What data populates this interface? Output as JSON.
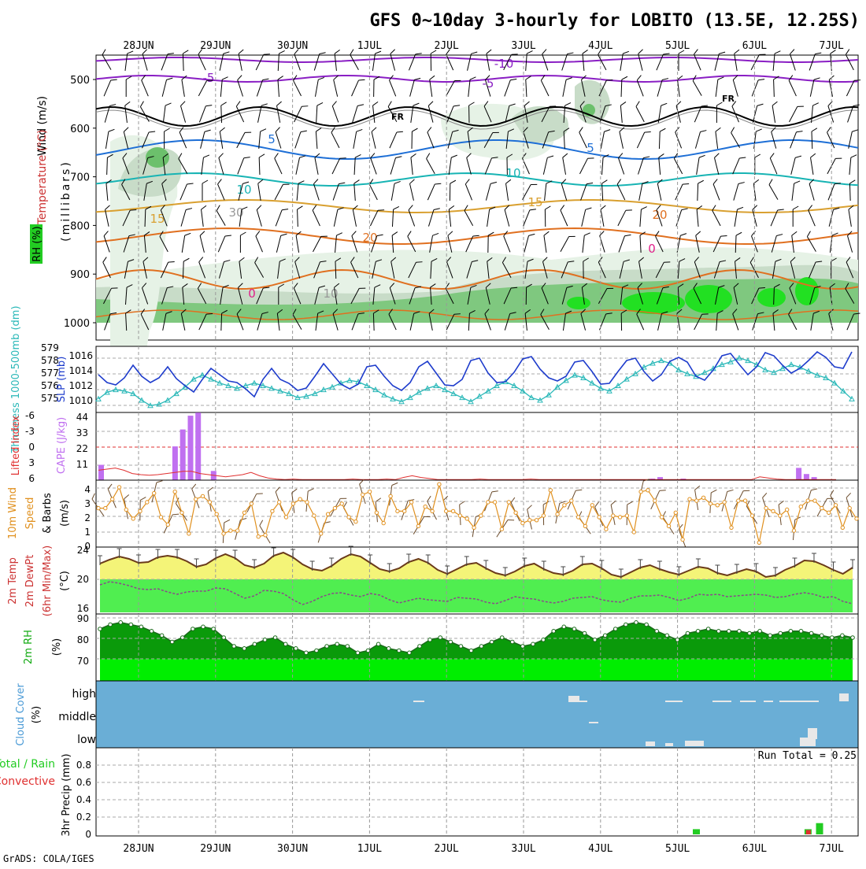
{
  "title": "GFS 0~10day 3-hourly for LOBITO (13.5E, 12.25S)",
  "footer": "GrADS: COLA/IGES",
  "days": [
    "28JUN",
    "29JUN",
    "30JUN",
    "1JUL",
    "2JUL",
    "3JUL",
    "4JUL",
    "5JUL",
    "6JUL",
    "7JUL"
  ],
  "colors": {
    "temp_neg10": "#8a1fc4",
    "temp_neg5": "#8a1fc4",
    "freezing": "#000000",
    "temp_5": "#1e6fd6",
    "temp_10": "#18b4b4",
    "temp_15": "#d9a030",
    "temp_20": "#e07020",
    "rh_light": "#e6f2e6",
    "rh_mid": "#c8dcc8",
    "rh_dark": "#7fc87f",
    "rh_bright": "#22e022",
    "slp": "#1e3ccc",
    "thickness": "#2ab8b8",
    "cape": "#c070f0",
    "lifted": "#e03030",
    "wind10": "#e0901e",
    "temp_fill": "#f4f478",
    "dew_fill": "#50ee50",
    "temp_line": "#6a3a1a",
    "rh_fill_dark": "#0a9a0a",
    "rh_fill_bright": "#00ee00",
    "cloud": "#6aaed6",
    "precip_total": "#22cc22",
    "precip_conv": "#e03030"
  },
  "panels": {
    "upper": {
      "ylabels": [
        "Wind (m/s)",
        "Temperature (°C)",
        "RH (%)",
        "(millibars)"
      ],
      "ticks": [
        "500",
        "600",
        "700",
        "800",
        "900",
        "1000"
      ],
      "contour_labels": [
        "-10",
        "-5",
        "-5",
        "FR",
        "FR",
        "5",
        "5",
        "10",
        "10",
        "15",
        "15",
        "20",
        "20",
        "0",
        "0",
        "30",
        "10"
      ]
    },
    "pressure": {
      "ylabel_left": "Thickness 1000-500mb (dm)",
      "ylabel_right": "SLP (mb)",
      "ticks_left": [
        "579",
        "578",
        "577",
        "576",
        "575"
      ],
      "ticks_right": [
        "1016",
        "1014",
        "1012",
        "1010"
      ]
    },
    "cape": {
      "ylabel_left": "Lifted Index",
      "ylabel_right": "CAPE (J/kg)",
      "ticks_left": [
        "-6",
        "-3",
        "0",
        "3",
        "6"
      ],
      "ticks_right": [
        "44",
        "33",
        "22",
        "11"
      ]
    },
    "wind10": {
      "ylabel": [
        "10m Wind",
        "Speed",
        "& Barbs",
        "(m/s)"
      ],
      "ticks": [
        "4",
        "3",
        "2",
        "1",
        "0"
      ]
    },
    "temp2m": {
      "ylabel": [
        "2m Temp",
        "2m DewPt",
        "(6hr Min/Max)",
        "(°C)"
      ],
      "ticks": [
        "24",
        "20",
        "16"
      ]
    },
    "rh2m": {
      "ylabel": [
        "2m RH",
        "(%)"
      ],
      "ticks": [
        "90",
        "80",
        "70"
      ]
    },
    "cloud": {
      "ylabel": [
        "Cloud Cover",
        "(%)"
      ],
      "ticks": [
        "high",
        "middle",
        "low"
      ]
    },
    "precip": {
      "ylabel": [
        "Total / Rain",
        "Convective",
        "3hr Precip (mm)"
      ],
      "ticks": [
        "0.8",
        "0.6",
        "0.4",
        "0.2",
        "0"
      ],
      "run_total": "Run Total = 0.25"
    }
  },
  "chart_data": [
    {
      "type": "line",
      "title": "SLP (mb)",
      "x_unit": "day index (0 = 28JUN 00Z, 3-hourly)",
      "ylim": [
        1009.5,
        1016.5
      ],
      "series": [
        {
          "name": "SLP (mb)",
          "values": [
            1013.6,
            1012.6,
            1012.3,
            1013.2,
            1014.8,
            1013.4,
            1012.6,
            1013.2,
            1014.6,
            1013.1,
            1012.2,
            1011.4,
            1013.0,
            1014.4,
            1013.6,
            1012.8,
            1012.6,
            1011.8,
            1010.8,
            1013.0,
            1014.4,
            1013.0,
            1012.5,
            1011.6,
            1011.9,
            1013.4,
            1015.0,
            1013.7,
            1012.4,
            1011.8,
            1012.4,
            1014.6,
            1014.8,
            1013.4,
            1012.2,
            1011.6,
            1012.6,
            1014.6,
            1015.3,
            1013.8,
            1012.3,
            1012.2,
            1013.0,
            1015.4,
            1015.7,
            1013.8,
            1012.6,
            1012.7,
            1013.9,
            1015.6,
            1015.9,
            1014.3,
            1013.2,
            1012.8,
            1013.4,
            1015.2,
            1015.4,
            1014.0,
            1012.4,
            1012.5,
            1014.0,
            1015.4,
            1015.7,
            1014.0,
            1012.8,
            1013.6,
            1015.3,
            1015.8,
            1015.2,
            1013.4,
            1012.9,
            1014.2,
            1016.0,
            1016.3,
            1014.9,
            1013.6,
            1014.6,
            1016.4,
            1016.0,
            1014.8,
            1013.8,
            1014.4,
            1015.4,
            1016.5,
            1015.8,
            1014.6,
            1014.4,
            1016.5
          ]
        }
      ]
    },
    {
      "type": "line",
      "title": "Thickness 1000-500mb (dm)",
      "ylim": [
        574.5,
        579.2
      ],
      "series": [
        {
          "name": "Thickness (dm)",
          "values": [
            575.2,
            575.7,
            575.9,
            575.8,
            575.6,
            575.1,
            574.7,
            574.8,
            575.1,
            575.6,
            576.1,
            576.7,
            577.0,
            576.7,
            576.4,
            576.2,
            576.0,
            576.2,
            576.4,
            576.2,
            576.0,
            575.8,
            575.6,
            575.3,
            575.4,
            575.6,
            575.9,
            576.1,
            576.4,
            576.6,
            576.5,
            576.2,
            575.9,
            575.5,
            575.2,
            575.0,
            575.3,
            575.7,
            576.0,
            576.2,
            575.9,
            575.6,
            575.3,
            575.0,
            575.4,
            575.8,
            576.2,
            576.5,
            576.2,
            575.8,
            575.3,
            575.1,
            575.5,
            576.1,
            576.6,
            577.0,
            576.8,
            576.4,
            576.0,
            575.8,
            576.2,
            576.7,
            577.1,
            577.6,
            577.9,
            578.1,
            577.9,
            577.4,
            577.1,
            576.9,
            577.2,
            577.5,
            577.8,
            578.0,
            578.3,
            578.1,
            577.8,
            577.4,
            577.2,
            577.5,
            577.8,
            577.6,
            577.3,
            577.0,
            576.8,
            576.4,
            575.8,
            575.2
          ]
        }
      ]
    },
    {
      "type": "bar",
      "title": "CAPE (J/kg)",
      "bars": [
        [
          0.0,
          10
        ],
        [
          0.5,
          22
        ],
        [
          0.6,
          33
        ],
        [
          0.7,
          42
        ],
        [
          0.8,
          44
        ],
        [
          1.0,
          6
        ],
        [
          6.7,
          1
        ],
        [
          6.8,
          2
        ],
        [
          7.1,
          1
        ],
        [
          8.6,
          8
        ],
        [
          8.7,
          4
        ],
        [
          8.8,
          2
        ]
      ],
      "ylim": [
        0,
        44
      ]
    },
    {
      "type": "line",
      "title": "Lifted Index",
      "ylim": [
        -6,
        6
      ],
      "series": [
        {
          "name": "Lifted Index",
          "values": [
            4.2,
            4.0,
            3.8,
            4.2,
            4.8,
            5.0,
            5.1,
            5.0,
            4.8,
            4.6,
            4.4,
            4.4,
            4.8,
            5.0,
            5.2,
            5.4,
            5.2,
            5.0,
            4.6,
            5.2,
            5.6,
            5.8,
            5.9,
            5.8,
            5.9,
            5.9,
            5.9,
            5.9,
            5.9,
            5.9,
            5.8,
            5.9,
            5.9,
            5.9,
            5.8,
            5.9,
            5.5,
            5.2,
            5.5,
            5.7,
            5.9,
            5.9,
            5.9,
            5.9,
            5.9,
            5.8,
            5.9,
            5.9,
            5.9,
            5.9,
            5.9,
            5.8,
            5.9,
            5.9,
            5.9,
            5.9,
            5.9,
            5.9,
            5.9,
            5.9,
            5.9,
            5.9,
            5.9,
            5.9,
            5.9,
            5.9,
            5.9,
            5.9,
            5.9,
            5.9,
            5.9,
            5.9,
            5.9,
            5.9,
            5.9,
            5.9,
            5.9,
            5.9,
            5.4,
            5.6,
            5.8,
            5.9,
            5.9,
            5.9,
            5.9,
            5.9,
            5.9,
            5.9
          ]
        }
      ]
    },
    {
      "type": "line",
      "title": "10m Wind Speed (m/s)",
      "ylim": [
        0,
        4.5
      ],
      "series": [
        {
          "name": "10m Wind Speed",
          "values": [
            2.6,
            2.6,
            3.2,
            4.0,
            2.5,
            1.9,
            2.4,
            3.0,
            3.6,
            2.0,
            1.5,
            3.7,
            2.3,
            0.9,
            3.2,
            3.4,
            3.0,
            2.2,
            0.9,
            1.1,
            1.1,
            2.3,
            2.9,
            0.7,
            0.8,
            2.4,
            3.0,
            2.0,
            2.9,
            3.2,
            3.0,
            2.1,
            0.9,
            2.2,
            2.6,
            2.9,
            2.0,
            1.7,
            3.5,
            3.7,
            2.3,
            1.6,
            3.4,
            2.4,
            2.4,
            3.0,
            1.4,
            2.7,
            2.4,
            4.2,
            2.4,
            2.4,
            2.1,
            1.9,
            1.3,
            2.1,
            3.0,
            3.0,
            1.2,
            3.0,
            2.3,
            1.6,
            1.8,
            1.8,
            2.1,
            3.8,
            2.2,
            2.8,
            3.1,
            2.0,
            1.4,
            2.8,
            2.0,
            1.2,
            2.1,
            2.0,
            2.1,
            1.0,
            3.7,
            3.8,
            3.1,
            2.0,
            1.4,
            2.3,
            0.5,
            3.2,
            3.1,
            3.3,
            2.9,
            2.8,
            3.0,
            1.3,
            3.1,
            3.1,
            2.1,
            0.3,
            2.6,
            2.4,
            2.1,
            2.5,
            1.1,
            2.7,
            3.1,
            3.1,
            2.6,
            2.3,
            2.8,
            1.3,
            2.6,
            1.9
          ]
        }
      ]
    },
    {
      "type": "area",
      "title": "2m Temp / DewPt (°C)",
      "ylim": [
        15.8,
        24
      ],
      "series": [
        {
          "name": "2m Temp",
          "values": [
            22.0,
            22.5,
            22.9,
            22.6,
            22.1,
            22.2,
            22.8,
            23.0,
            22.8,
            22.3,
            21.6,
            21.9,
            22.7,
            23.2,
            22.7,
            21.8,
            21.5,
            22.0,
            23.0,
            23.4,
            22.8,
            21.9,
            21.3,
            21.1,
            21.7,
            22.6,
            23.2,
            22.9,
            22.1,
            21.3,
            21.0,
            21.4,
            22.2,
            22.6,
            22.1,
            21.2,
            20.7,
            21.3,
            21.9,
            22.1,
            21.4,
            20.8,
            20.5,
            21.0,
            21.7,
            22.0,
            21.3,
            20.8,
            20.6,
            21.1,
            21.9,
            22.0,
            21.4,
            20.6,
            20.3,
            20.9,
            21.5,
            21.8,
            21.3,
            20.9,
            20.6,
            21.1,
            21.6,
            21.4,
            20.8,
            20.5,
            20.9,
            21.3,
            21.0,
            20.3,
            20.5,
            21.2,
            21.7,
            22.4,
            22.3,
            21.8,
            21.2,
            20.7,
            21.5
          ],
          "note_range": "6hr min/max error bars"
        },
        {
          "name": "2m DewPt",
          "values": [
            19.3,
            19.7,
            19.5,
            19.2,
            18.8,
            18.7,
            18.8,
            18.4,
            18.1,
            18.4,
            18.5,
            18.5,
            18.9,
            18.8,
            18.2,
            17.6,
            17.9,
            18.6,
            18.5,
            18.2,
            17.4,
            16.8,
            17.2,
            17.8,
            18.2,
            18.3,
            18.0,
            17.8,
            18.2,
            18.0,
            17.4,
            17.0,
            17.3,
            17.6,
            17.4,
            17.3,
            17.2,
            17.7,
            17.6,
            17.5,
            17.1,
            16.9,
            17.3,
            17.8,
            17.6,
            17.5,
            17.2,
            17.0,
            17.2,
            17.6,
            17.7,
            17.8,
            17.4,
            17.2,
            17.1,
            17.6,
            17.9,
            17.9,
            18.0,
            17.7,
            17.3,
            17.6,
            18.1,
            18.0,
            18.1,
            17.8,
            17.9,
            18.0,
            18.1,
            18.0,
            17.7,
            17.8,
            18.1,
            18.3,
            18.1,
            17.7,
            17.8,
            17.2,
            16.9
          ]
        }
      ]
    },
    {
      "type": "area",
      "title": "2m RH (%)",
      "ylim": [
        60,
        90
      ],
      "series": [
        {
          "name": "2m RH",
          "values": [
            84,
            86,
            87,
            86,
            85,
            83,
            81,
            78,
            80,
            84,
            85,
            84,
            80,
            76,
            75,
            77,
            79,
            80,
            77,
            75,
            73,
            74,
            76,
            77,
            76,
            73,
            74,
            77,
            75,
            74,
            73,
            76,
            79,
            80,
            78,
            76,
            74,
            76,
            78,
            80,
            78,
            76,
            77,
            79,
            83,
            85,
            84,
            82,
            79,
            81,
            84,
            86,
            87,
            86,
            83,
            81,
            79,
            82,
            83,
            84,
            83,
            83,
            83,
            82,
            83,
            81,
            82,
            83,
            83,
            82,
            81,
            80,
            81,
            80
          ]
        }
      ]
    },
    {
      "type": "table",
      "title": "Cloud Cover (%)",
      "rows": [
        "high",
        "middle",
        "low"
      ],
      "note": "background cloud fill at all levels"
    },
    {
      "type": "bar",
      "title": "3hr Precip (mm)",
      "ylim": [
        0,
        1
      ],
      "series": [
        {
          "name": "Total / Rain",
          "bars": [
            [
              7.25,
              0.06
            ],
            [
              8.7,
              0.06
            ],
            [
              8.85,
              0.13
            ]
          ]
        },
        {
          "name": "Convective",
          "bars": [
            [
              8.72,
              0.05
            ]
          ]
        }
      ]
    }
  ]
}
